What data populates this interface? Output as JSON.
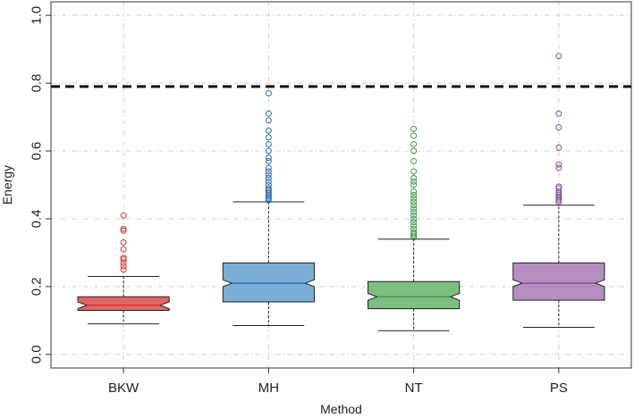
{
  "chart_data": {
    "type": "box",
    "title": "",
    "xlabel": "Method",
    "ylabel": "Energy",
    "ylim": [
      -0.04,
      1.04
    ],
    "yticks": [
      "0.0",
      "0.2",
      "0.4",
      "0.6",
      "0.8",
      "1.0"
    ],
    "grid": true,
    "reference_line": {
      "y": 0.79,
      "style": "dashed"
    },
    "categories": [
      "BKW",
      "MH",
      "NT",
      "PS"
    ],
    "boxes": [
      {
        "name": "BKW",
        "color": "#e06666",
        "median_color": "#e03030",
        "whisker_low": 0.09,
        "q1": 0.13,
        "median": 0.145,
        "q3": 0.17,
        "whisker_high": 0.23,
        "notch_low": 0.135,
        "notch_high": 0.155,
        "outliers": [
          0.25,
          0.26,
          0.27,
          0.28,
          0.285,
          0.31,
          0.33,
          0.365,
          0.37,
          0.41
        ]
      },
      {
        "name": "MH",
        "color": "#7aaed6",
        "median_color": "#2b6fb0",
        "whisker_low": 0.085,
        "q1": 0.155,
        "median": 0.21,
        "q3": 0.27,
        "whisker_high": 0.45,
        "notch_low": 0.2,
        "notch_high": 0.22,
        "outliers": [
          0.455,
          0.46,
          0.465,
          0.47,
          0.475,
          0.48,
          0.485,
          0.49,
          0.5,
          0.51,
          0.52,
          0.53,
          0.54,
          0.55,
          0.57,
          0.58,
          0.6,
          0.62,
          0.64,
          0.66,
          0.69,
          0.71,
          0.77
        ]
      },
      {
        "name": "NT",
        "color": "#7cbf80",
        "median_color": "#3f9a46",
        "whisker_low": 0.07,
        "q1": 0.135,
        "median": 0.17,
        "q3": 0.215,
        "whisker_high": 0.34,
        "notch_low": 0.16,
        "notch_high": 0.18,
        "outliers": [
          0.345,
          0.35,
          0.355,
          0.36,
          0.37,
          0.38,
          0.39,
          0.4,
          0.41,
          0.42,
          0.43,
          0.44,
          0.45,
          0.46,
          0.47,
          0.48,
          0.5,
          0.51,
          0.52,
          0.54,
          0.57,
          0.6,
          0.62,
          0.645,
          0.665
        ]
      },
      {
        "name": "PS",
        "color": "#b58ec0",
        "median_color": "#8a4f9c",
        "whisker_low": 0.08,
        "q1": 0.16,
        "median": 0.21,
        "q3": 0.27,
        "whisker_high": 0.44,
        "notch_low": 0.2,
        "notch_high": 0.22,
        "outliers": [
          0.45,
          0.455,
          0.46,
          0.465,
          0.47,
          0.475,
          0.48,
          0.49,
          0.495,
          0.55,
          0.56,
          0.61,
          0.67,
          0.71,
          0.88
        ]
      }
    ]
  }
}
